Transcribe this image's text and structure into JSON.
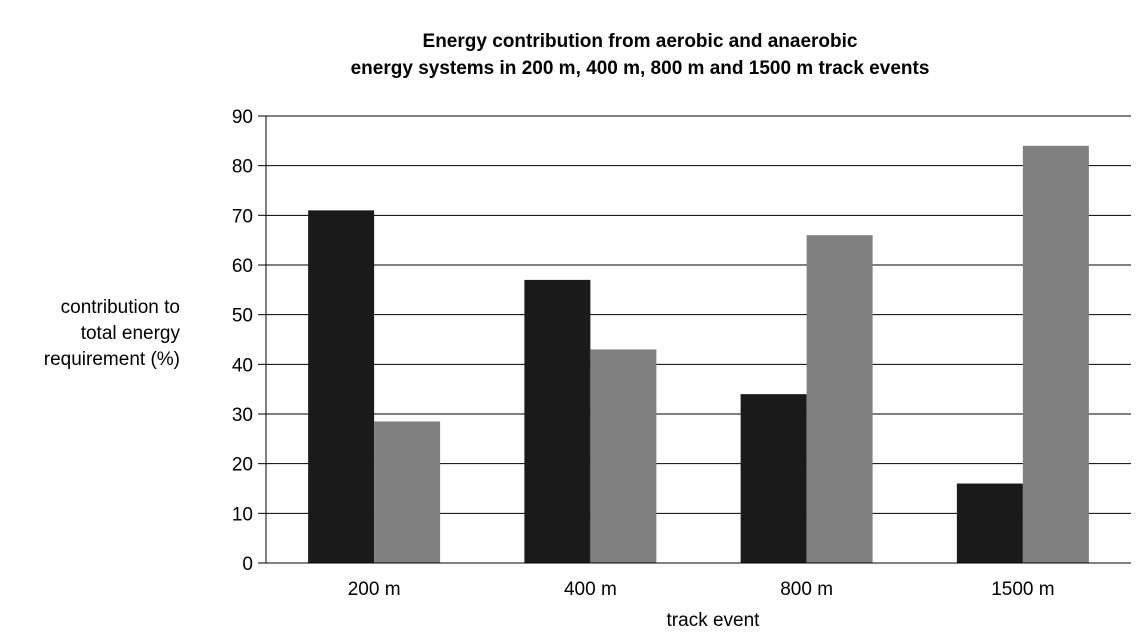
{
  "chart_data": {
    "type": "bar",
    "title_lines": [
      "Energy contribution from aerobic and anaerobic",
      "energy systems in 200 m, 400 m, 800 m and 1500 m track events"
    ],
    "xlabel": "track event",
    "ylabel_lines": [
      "contribution to",
      "total energy",
      "requirement (%)"
    ],
    "categories": [
      "200 m",
      "400 m",
      "800 m",
      "1500 m"
    ],
    "series": [
      {
        "color": "#1a1a1a",
        "values": [
          71,
          57,
          34,
          16
        ]
      },
      {
        "color": "#808080",
        "values": [
          28.5,
          43,
          66,
          84
        ]
      }
    ],
    "ylim": [
      0,
      90
    ],
    "yticks": [
      0,
      10,
      20,
      30,
      40,
      50,
      60,
      70,
      80,
      90
    ],
    "grid": true,
    "legend": "none"
  }
}
